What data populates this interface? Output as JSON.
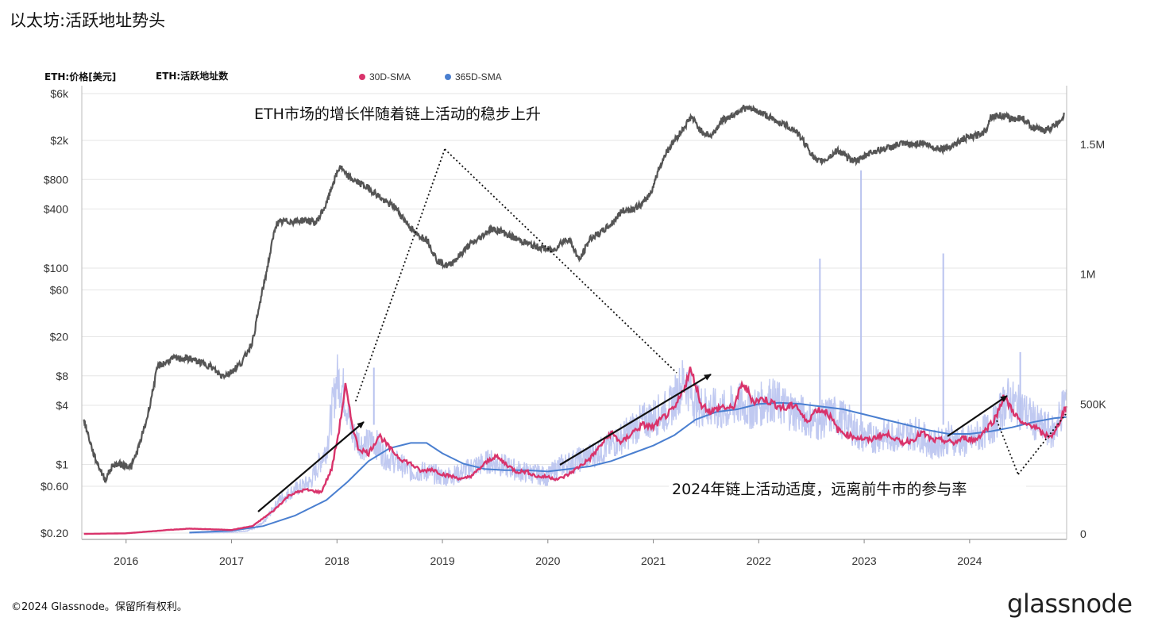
{
  "header": {
    "title": "以太坊:活跃地址势头"
  },
  "footer": {
    "copyright": "©2024 Glassnode。保留所有权利。",
    "logo": "glassnode"
  },
  "colors": {
    "price": "#555555",
    "sma30": "#d9336b",
    "sma365": "#4a7fd0",
    "daily": "#b9c3ef",
    "grid": "#e6e6e6"
  },
  "chart_data": {
    "type": "line",
    "legend": [
      {
        "label": "ETH:价格[美元]",
        "color": "#555555"
      },
      {
        "label": "ETH:活跃地址数",
        "color": "#b9c3ef"
      },
      {
        "label": "30D-SMA",
        "color": "#d9336b"
      },
      {
        "label": "365D-SMA",
        "color": "#4a7fd0"
      }
    ],
    "legend_position": "top",
    "grid": true,
    "left_axis": {
      "scale": "log",
      "ticks": [
        "$6k",
        "$2k",
        "$800",
        "$400",
        "$100",
        "$60",
        "$20",
        "$8",
        "$4",
        "$1",
        "$0.60",
        "$0.20"
      ],
      "tick_values": [
        6000,
        2000,
        800,
        400,
        100,
        60,
        20,
        8,
        4,
        1,
        0.6,
        0.2
      ],
      "range": [
        0.2,
        6000
      ]
    },
    "right_axis": {
      "scale": "linear",
      "ticks": [
        "1.5M",
        "1M",
        "500K",
        "0"
      ],
      "tick_values": [
        1500000,
        1000000,
        500000,
        0
      ],
      "range": [
        0,
        1500000
      ]
    },
    "x_axis": {
      "ticks": [
        "2016",
        "2017",
        "2018",
        "2019",
        "2020",
        "2021",
        "2022",
        "2023",
        "2024"
      ],
      "tick_values": [
        2016,
        2017,
        2018,
        2019,
        2020,
        2021,
        2022,
        2023,
        2024
      ],
      "range": [
        2015.58,
        2024.92
      ]
    },
    "series": [
      {
        "name": "ETH:价格[美元]",
        "axis": "left",
        "x": [
          2015.6,
          2015.7,
          2015.8,
          2015.88,
          2015.95,
          2016.05,
          2016.12,
          2016.2,
          2016.3,
          2016.45,
          2016.6,
          2016.7,
          2016.8,
          2016.9,
          2016.98,
          2017.1,
          2017.2,
          2017.28,
          2017.33,
          2017.42,
          2017.5,
          2017.6,
          2017.7,
          2017.8,
          2017.9,
          2017.96,
          2018.03,
          2018.08,
          2018.15,
          2018.25,
          2018.35,
          2018.45,
          2018.55,
          2018.65,
          2018.75,
          2018.85,
          2018.95,
          2019.05,
          2019.15,
          2019.25,
          2019.35,
          2019.45,
          2019.55,
          2019.65,
          2019.75,
          2019.85,
          2019.95,
          2020.05,
          2020.12,
          2020.2,
          2020.3,
          2020.4,
          2020.5,
          2020.6,
          2020.7,
          2020.8,
          2020.9,
          2020.98,
          2021.05,
          2021.12,
          2021.2,
          2021.28,
          2021.36,
          2021.45,
          2021.55,
          2021.65,
          2021.75,
          2021.85,
          2021.95,
          2022.05,
          2022.15,
          2022.25,
          2022.35,
          2022.45,
          2022.55,
          2022.65,
          2022.75,
          2022.85,
          2022.95,
          2023.05,
          2023.15,
          2023.25,
          2023.35,
          2023.45,
          2023.55,
          2023.65,
          2023.75,
          2023.85,
          2023.95,
          2024.05,
          2024.15,
          2024.2,
          2024.3,
          2024.4,
          2024.5,
          2024.6,
          2024.7,
          2024.8,
          2024.9
        ],
        "values": [
          2.8,
          1.2,
          0.7,
          1.0,
          1.0,
          0.95,
          1.5,
          3.0,
          10,
          12,
          12,
          11,
          10,
          8.0,
          8.5,
          11,
          18,
          50,
          90,
          280,
          300,
          300,
          310,
          290,
          450,
          720,
          1100,
          900,
          800,
          700,
          600,
          480,
          420,
          300,
          220,
          200,
          120,
          105,
          130,
          170,
          200,
          250,
          240,
          210,
          190,
          170,
          160,
          150,
          180,
          200,
          120,
          200,
          230,
          280,
          380,
          400,
          450,
          600,
          1000,
          1500,
          2000,
          2600,
          3500,
          2500,
          2200,
          3200,
          3600,
          4300,
          4100,
          3700,
          3200,
          2900,
          2500,
          1800,
          1200,
          1300,
          1600,
          1300,
          1250,
          1500,
          1600,
          1700,
          1850,
          1800,
          1900,
          1700,
          1650,
          1800,
          2100,
          2200,
          2500,
          3500,
          3600,
          3300,
          3400,
          2700,
          2500,
          2800,
          3600
        ]
      },
      {
        "name": "ETH:活跃地址数",
        "axis": "right",
        "x": [
          2016.6,
          2016.8,
          2017.0,
          2017.15,
          2017.3,
          2017.45,
          2017.6,
          2017.75,
          2017.9,
          2018.0,
          2018.05,
          2018.1,
          2018.15,
          2018.25,
          2018.35,
          2018.45,
          2018.55,
          2018.7,
          2018.85,
          2019.0,
          2019.15,
          2019.3,
          2019.45,
          2019.6,
          2019.75,
          2019.9,
          2020.0,
          2020.1,
          2020.25,
          2020.4,
          2020.55,
          2020.7,
          2020.85,
          2021.0,
          2021.15,
          2021.3,
          2021.4,
          2021.5,
          2021.65,
          2021.8,
          2021.95,
          2022.1,
          2022.25,
          2022.4,
          2022.55,
          2022.7,
          2022.85,
          2022.95,
          2023.05,
          2023.2,
          2023.35,
          2023.5,
          2023.65,
          2023.8,
          2023.95,
          2024.1,
          2024.25,
          2024.35,
          2024.5,
          2024.65,
          2024.8,
          2024.92
        ],
        "values": [
          3000,
          4000,
          6000,
          12000,
          40000,
          130000,
          170000,
          200000,
          330000,
          600000,
          570000,
          480000,
          380000,
          340000,
          360000,
          300000,
          280000,
          240000,
          240000,
          220000,
          230000,
          260000,
          280000,
          260000,
          240000,
          230000,
          220000,
          260000,
          280000,
          300000,
          330000,
          370000,
          420000,
          450000,
          480000,
          600000,
          500000,
          490000,
          470000,
          500000,
          480000,
          520000,
          490000,
          460000,
          430000,
          460000,
          430000,
          380000,
          370000,
          380000,
          380000,
          390000,
          340000,
          370000,
          350000,
          380000,
          430000,
          520000,
          480000,
          420000,
          390000,
          530000
        ]
      },
      {
        "name": "30D-SMA",
        "axis": "right",
        "x": [
          2015.6,
          2016.0,
          2016.4,
          2016.6,
          2017.0,
          2017.2,
          2017.4,
          2017.55,
          2017.7,
          2017.85,
          2017.95,
          2018.02,
          2018.08,
          2018.13,
          2018.2,
          2018.3,
          2018.4,
          2018.5,
          2018.6,
          2018.7,
          2018.8,
          2018.9,
          2019.0,
          2019.1,
          2019.2,
          2019.3,
          2019.4,
          2019.5,
          2019.6,
          2019.7,
          2019.8,
          2019.9,
          2020.0,
          2020.1,
          2020.2,
          2020.3,
          2020.4,
          2020.5,
          2020.6,
          2020.7,
          2020.8,
          2020.9,
          2021.0,
          2021.1,
          2021.2,
          2021.27,
          2021.35,
          2021.4,
          2021.45,
          2021.55,
          2021.65,
          2021.75,
          2021.85,
          2021.95,
          2022.05,
          2022.15,
          2022.25,
          2022.35,
          2022.45,
          2022.55,
          2022.65,
          2022.75,
          2022.85,
          2022.95,
          2023.05,
          2023.15,
          2023.25,
          2023.35,
          2023.45,
          2023.55,
          2023.65,
          2023.75,
          2023.85,
          2023.95,
          2024.05,
          2024.15,
          2024.25,
          2024.32,
          2024.4,
          2024.5,
          2024.6,
          2024.7,
          2024.8,
          2024.92
        ],
        "values": [
          0,
          2000,
          15000,
          20000,
          15000,
          30000,
          90000,
          150000,
          170000,
          160000,
          250000,
          400000,
          570000,
          450000,
          330000,
          310000,
          380000,
          330000,
          290000,
          270000,
          240000,
          250000,
          230000,
          220000,
          210000,
          230000,
          270000,
          300000,
          270000,
          240000,
          240000,
          220000,
          220000,
          210000,
          230000,
          260000,
          290000,
          340000,
          390000,
          350000,
          390000,
          420000,
          410000,
          450000,
          480000,
          540000,
          630000,
          580000,
          500000,
          470000,
          490000,
          480000,
          580000,
          510000,
          520000,
          500000,
          480000,
          500000,
          430000,
          480000,
          470000,
          400000,
          380000,
          370000,
          360000,
          380000,
          380000,
          350000,
          360000,
          390000,
          360000,
          360000,
          350000,
          370000,
          360000,
          400000,
          450000,
          530000,
          480000,
          420000,
          420000,
          380000,
          380000,
          500000
        ]
      },
      {
        "name": "365D-SMA",
        "axis": "right",
        "x": [
          2016.6,
          2017.0,
          2017.3,
          2017.6,
          2017.9,
          2018.1,
          2018.3,
          2018.5,
          2018.7,
          2018.85,
          2019.0,
          2019.2,
          2019.4,
          2019.6,
          2019.8,
          2020.0,
          2020.2,
          2020.4,
          2020.6,
          2020.8,
          2021.0,
          2021.2,
          2021.4,
          2021.6,
          2021.8,
          2022.0,
          2022.2,
          2022.4,
          2022.6,
          2022.8,
          2023.0,
          2023.2,
          2023.4,
          2023.6,
          2023.8,
          2024.0,
          2024.2,
          2024.4,
          2024.6,
          2024.8,
          2024.92
        ],
        "values": [
          5000,
          12000,
          30000,
          70000,
          130000,
          200000,
          280000,
          330000,
          350000,
          350000,
          310000,
          270000,
          250000,
          245000,
          245000,
          240000,
          250000,
          260000,
          280000,
          310000,
          340000,
          380000,
          440000,
          470000,
          480000,
          500000,
          505000,
          500000,
          490000,
          480000,
          460000,
          440000,
          420000,
          400000,
          385000,
          385000,
          395000,
          410000,
          430000,
          445000,
          450000
        ]
      }
    ],
    "annotations": [
      "ETH市场的增长伴随着链上活动的稳步上升",
      "2024年链上活动适度，远离前牛市的参与率"
    ]
  }
}
